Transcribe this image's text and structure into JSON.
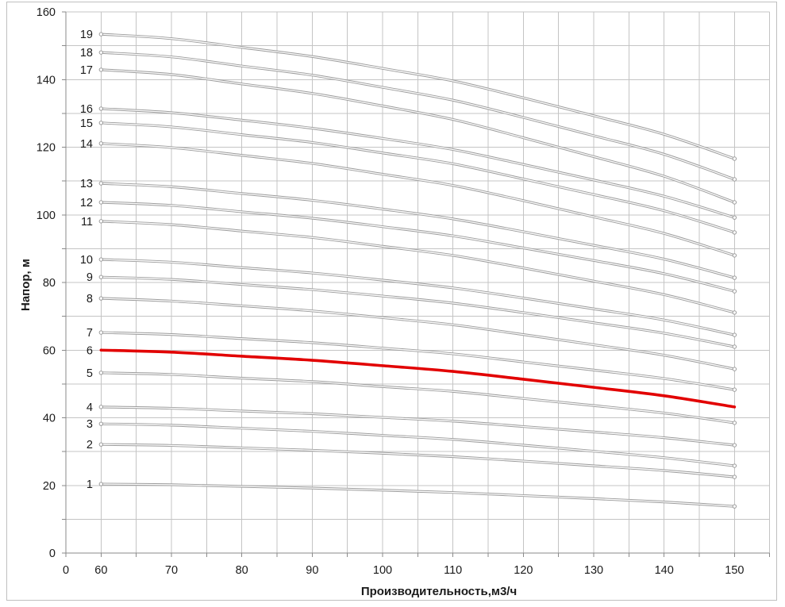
{
  "chart_data": {
    "type": "line",
    "title": "",
    "xlabel": "Производительность,м3/ч",
    "ylabel": "Напор, м",
    "xlim": [
      55,
      155
    ],
    "ylim": [
      0,
      160
    ],
    "x_origin_label": "0",
    "xticks": [
      60,
      70,
      80,
      90,
      100,
      110,
      120,
      130,
      140,
      150
    ],
    "yticks": [
      0,
      20,
      40,
      60,
      80,
      100,
      120,
      140,
      160
    ],
    "x_grid_step": 5,
    "y_grid_step": 10,
    "grid": true,
    "legend": "inline labels at left end of each curve",
    "curve_color": "#9b9b9b",
    "highlight_color": "#e20000",
    "highlight_series": "6",
    "x": [
      60,
      70,
      80,
      90,
      100,
      110,
      120,
      130,
      140,
      150
    ],
    "series": [
      {
        "name": "1",
        "values": [
          20.4,
          20.2,
          19.7,
          19.2,
          18.6,
          17.9,
          17.0,
          16.1,
          15.1,
          13.8
        ]
      },
      {
        "name": "2",
        "values": [
          32.1,
          31.8,
          31.1,
          30.4,
          29.5,
          28.5,
          27.2,
          25.8,
          24.4,
          22.5
        ]
      },
      {
        "name": "3",
        "values": [
          38.2,
          37.8,
          36.9,
          36.0,
          34.8,
          33.6,
          31.9,
          30.1,
          28.2,
          25.8
        ]
      },
      {
        "name": "4",
        "values": [
          43.2,
          42.8,
          42.0,
          41.2,
          40.1,
          39.0,
          37.4,
          35.8,
          34.1,
          31.9
        ]
      },
      {
        "name": "5",
        "values": [
          53.3,
          52.8,
          51.7,
          50.7,
          49.2,
          47.8,
          45.7,
          43.6,
          41.4,
          38.5
        ]
      },
      {
        "name": "6",
        "values": [
          60.0,
          59.4,
          58.2,
          57.0,
          55.4,
          53.7,
          51.4,
          49.0,
          46.5,
          43.2
        ]
      },
      {
        "name": "7",
        "values": [
          65.2,
          64.6,
          63.4,
          62.2,
          60.6,
          58.9,
          56.5,
          54.1,
          51.6,
          48.3
        ]
      },
      {
        "name": "8",
        "values": [
          75.3,
          74.5,
          73.1,
          71.6,
          69.6,
          67.5,
          64.6,
          61.6,
          58.5,
          54.4
        ]
      },
      {
        "name": "9",
        "values": [
          81.6,
          80.9,
          79.4,
          77.9,
          76.0,
          73.9,
          71.1,
          68.1,
          65.0,
          61.0
        ]
      },
      {
        "name": "10",
        "values": [
          86.8,
          86.0,
          84.4,
          82.8,
          80.7,
          78.4,
          75.4,
          72.2,
          68.9,
          64.5
        ]
      },
      {
        "name": "11",
        "values": [
          98.1,
          97.1,
          95.2,
          93.3,
          90.7,
          88.0,
          84.3,
          80.4,
          76.4,
          71.1
        ]
      },
      {
        "name": "12",
        "values": [
          103.7,
          102.8,
          100.9,
          99.0,
          96.5,
          93.8,
          90.2,
          86.5,
          82.6,
          77.4
        ]
      },
      {
        "name": "13",
        "values": [
          109.3,
          108.3,
          106.3,
          104.3,
          101.7,
          98.8,
          95.0,
          91.0,
          86.9,
          81.4
        ]
      },
      {
        "name": "14",
        "values": [
          121.1,
          119.9,
          117.6,
          115.2,
          112.0,
          108.7,
          104.2,
          99.4,
          94.5,
          88.0
        ]
      },
      {
        "name": "15",
        "values": [
          127.2,
          126.0,
          123.7,
          121.4,
          118.3,
          115.1,
          110.6,
          106.0,
          101.2,
          94.8
        ]
      },
      {
        "name": "16",
        "values": [
          131.4,
          130.2,
          128.0,
          125.6,
          122.6,
          119.3,
          114.9,
          110.3,
          105.5,
          99.2
        ]
      },
      {
        "name": "17",
        "values": [
          142.9,
          141.5,
          138.7,
          135.9,
          132.2,
          128.2,
          122.8,
          117.2,
          111.4,
          103.7
        ]
      },
      {
        "name": "18",
        "values": [
          148.0,
          146.7,
          144.0,
          141.3,
          137.7,
          133.9,
          128.8,
          123.4,
          117.9,
          110.5
        ]
      },
      {
        "name": "19",
        "values": [
          153.4,
          152.1,
          149.5,
          146.8,
          143.3,
          139.6,
          134.6,
          129.3,
          123.8,
          116.6
        ]
      }
    ]
  }
}
